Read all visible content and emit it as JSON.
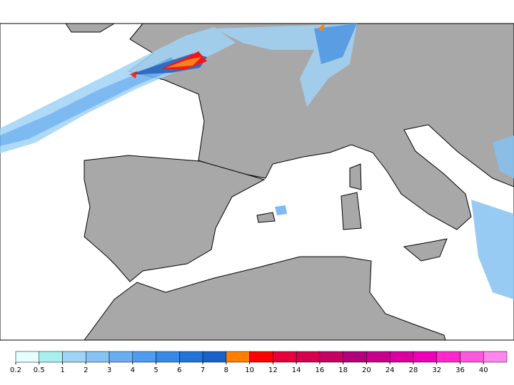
{
  "legend": {
    "levels": [
      0.2,
      0.5,
      1,
      2,
      3,
      4,
      5,
      6,
      7,
      8,
      10,
      12,
      14,
      16,
      18,
      20,
      24,
      28,
      32,
      36,
      40
    ],
    "colors": [
      "#e6ffff",
      "#a8f0f0",
      "#a0d4f6",
      "#86c2f2",
      "#68aef0",
      "#4e9cee",
      "#3888e6",
      "#2474d8",
      "#1a62c8",
      "#ff8000",
      "#ff0000",
      "#e8003a",
      "#d6004e",
      "#c40064",
      "#b2007a",
      "#c8008c",
      "#dc00a2",
      "#ee00b8",
      "#ff28ca",
      "#ff58dc",
      "#ff86ee"
    ]
  }
}
